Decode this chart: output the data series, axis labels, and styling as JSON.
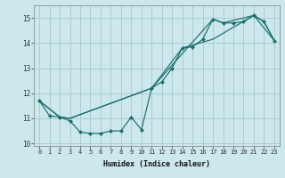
{
  "xlabel": "Humidex (Indice chaleur)",
  "bg_color": "#cce8ec",
  "grid_color": "#aacdd4",
  "line_color": "#1a6e6e",
  "xlim": [
    -0.5,
    23.5
  ],
  "ylim": [
    9.9,
    15.5
  ],
  "yticks": [
    10,
    11,
    12,
    13,
    14,
    15
  ],
  "xticks": [
    0,
    1,
    2,
    3,
    4,
    5,
    6,
    7,
    8,
    9,
    10,
    11,
    12,
    13,
    14,
    15,
    16,
    17,
    18,
    19,
    20,
    21,
    22,
    23
  ],
  "line1_x": [
    0,
    1,
    2,
    3,
    4,
    5,
    6,
    7,
    8,
    9,
    10,
    11,
    12,
    13,
    14,
    15,
    16,
    17,
    18,
    19,
    20,
    21,
    22,
    23
  ],
  "line1_y": [
    11.7,
    11.1,
    11.05,
    10.9,
    10.45,
    10.4,
    10.4,
    10.5,
    10.5,
    11.05,
    10.55,
    12.2,
    12.45,
    13.0,
    13.8,
    13.85,
    14.15,
    14.95,
    14.8,
    14.8,
    14.85,
    15.1,
    14.85,
    14.1
  ],
  "line2_x": [
    0,
    2,
    3,
    11,
    17,
    18,
    21,
    22,
    23
  ],
  "line2_y": [
    11.7,
    11.05,
    11.0,
    12.2,
    14.95,
    14.8,
    15.1,
    14.85,
    14.1
  ],
  "line3_x": [
    0,
    2,
    3,
    11,
    14,
    17,
    21,
    23
  ],
  "line3_y": [
    11.7,
    11.05,
    11.0,
    12.2,
    13.8,
    14.15,
    15.1,
    14.1
  ]
}
